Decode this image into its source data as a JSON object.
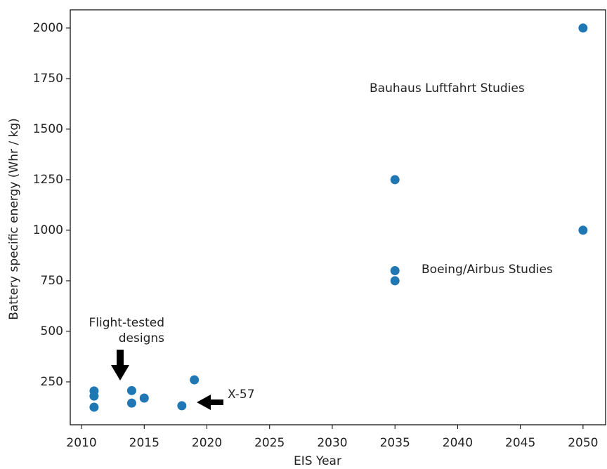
{
  "chart_data": {
    "type": "scatter",
    "xlabel": "EIS Year",
    "ylabel": "Battery specific energy (Whr / kg)",
    "series": [
      {
        "color": "#1f77b4",
        "x": [
          2011,
          2011,
          2011,
          2014,
          2014,
          2015,
          2018,
          2019,
          2035,
          2035,
          2035,
          2050,
          2050
        ],
        "values": [
          205,
          180,
          125,
          207,
          145,
          170,
          132,
          260,
          1250,
          800,
          750,
          2000,
          1000
        ]
      }
    ],
    "xlim": [
      2009.1,
      2051.8
    ],
    "ylim": [
      38,
      2090
    ],
    "xticks": [
      2010,
      2015,
      2020,
      2025,
      2030,
      2035,
      2040,
      2045,
      2050
    ],
    "yticks": [
      250,
      500,
      750,
      1000,
      1250,
      1500,
      1750,
      2000
    ],
    "annotations": [
      "Bauhaus Luftfahrt Studies",
      "Boeing/Airbus Studies",
      [
        "Flight-tested",
        "designs"
      ],
      "X-57"
    ]
  }
}
